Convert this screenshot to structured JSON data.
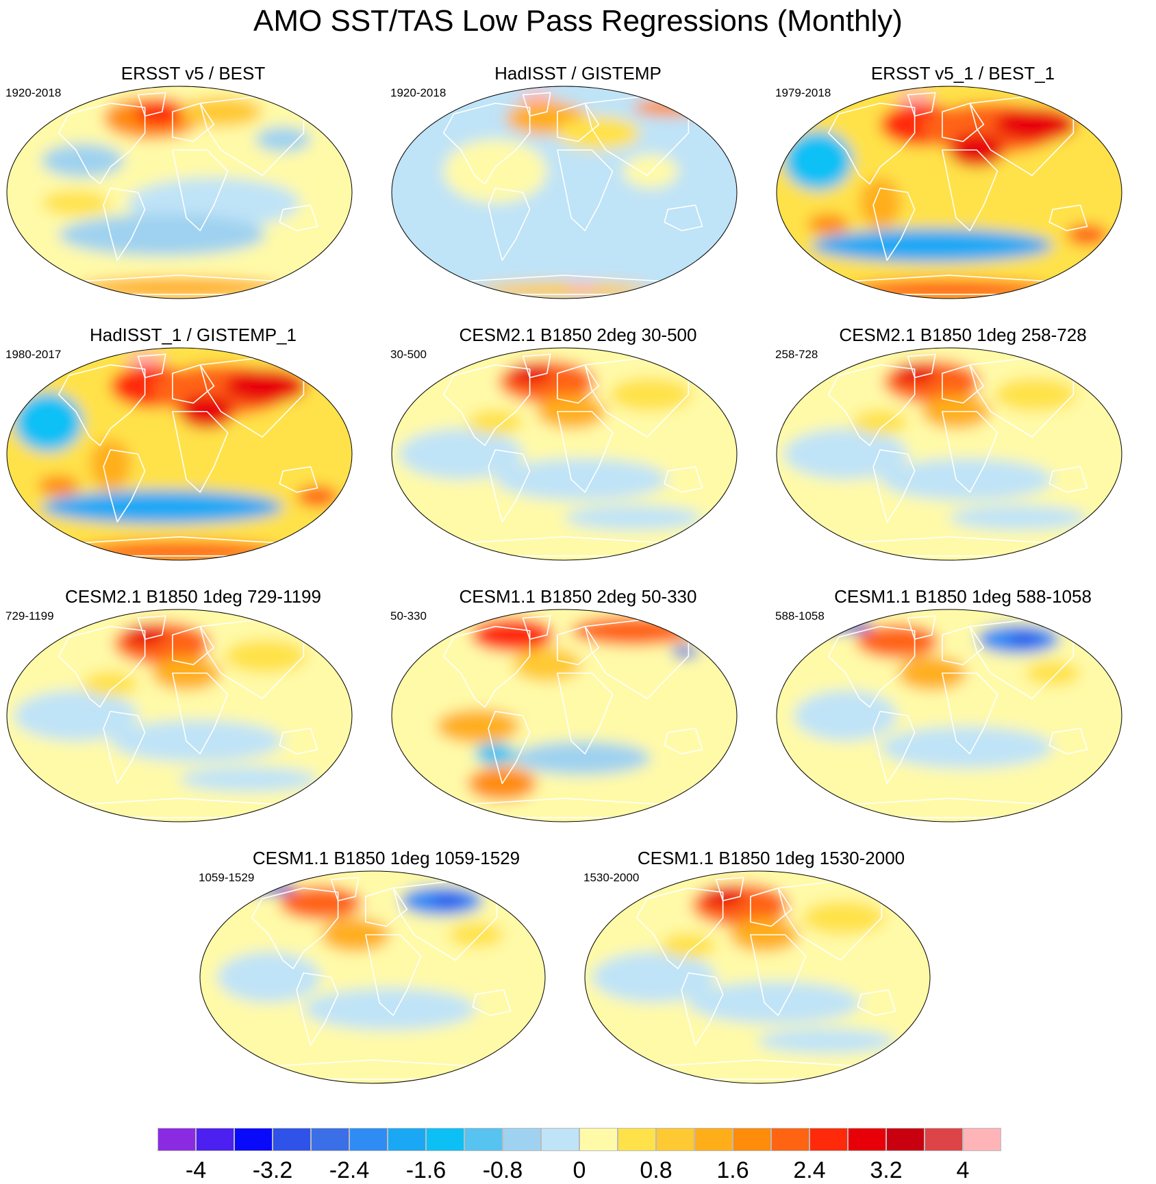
{
  "title": "AMO SST/TAS Low Pass Regressions (Monthly)",
  "panels": [
    {
      "title": "ERSST v5 / BEST",
      "period": "1920-2018",
      "style": "obs_mild"
    },
    {
      "title": "HadISST / GISTEMP",
      "period": "1920-2018",
      "style": "obs_cool"
    },
    {
      "title": "ERSST v5_1 / BEST_1",
      "period": "1979-2018",
      "style": "obs_strong"
    },
    {
      "title": "HadISST_1 / GISTEMP_1",
      "period": "1980-2017",
      "style": "obs_strong"
    },
    {
      "title": "CESM2.1 B1850 2deg 30-500",
      "period": "30-500",
      "style": "model"
    },
    {
      "title": "CESM2.1 B1850 1deg 258-728",
      "period": "258-728",
      "style": "model"
    },
    {
      "title": "CESM2.1 B1850 1deg 729-1199",
      "period": "729-1199",
      "style": "model"
    },
    {
      "title": "CESM1.1 B1850 2deg 50-330",
      "period": "50-330",
      "style": "model_pac"
    },
    {
      "title": "CESM1.1 B1850 1deg 588-1058",
      "period": "588-1058",
      "style": "model_sib"
    },
    {
      "title": "CESM1.1 B1850 1deg 1059-1529",
      "period": "1059-1529",
      "style": "model_sib"
    },
    {
      "title": "CESM1.1 B1850 1deg 1530-2000",
      "period": "1530-2000",
      "style": "model"
    }
  ],
  "colorbar": {
    "colors": [
      "#8a2be2",
      "#4b20f0",
      "#0a0afa",
      "#2f52e8",
      "#3a6fe8",
      "#2f8cf5",
      "#1aa8f5",
      "#0cc0f5",
      "#56c3f0",
      "#9fd2f0",
      "#bfe3f7",
      "#fffaa8",
      "#ffe24a",
      "#ffc933",
      "#ffae1a",
      "#ff8c0a",
      "#ff6413",
      "#ff2a0a",
      "#e80008",
      "#c80010",
      "#dc4448",
      "#ffb4b8"
    ],
    "tick_labels": [
      "-4",
      "-3.2",
      "-2.4",
      "-1.6",
      "-0.8",
      "0",
      "0.8",
      "1.6",
      "2.4",
      "3.2",
      "4"
    ]
  }
}
